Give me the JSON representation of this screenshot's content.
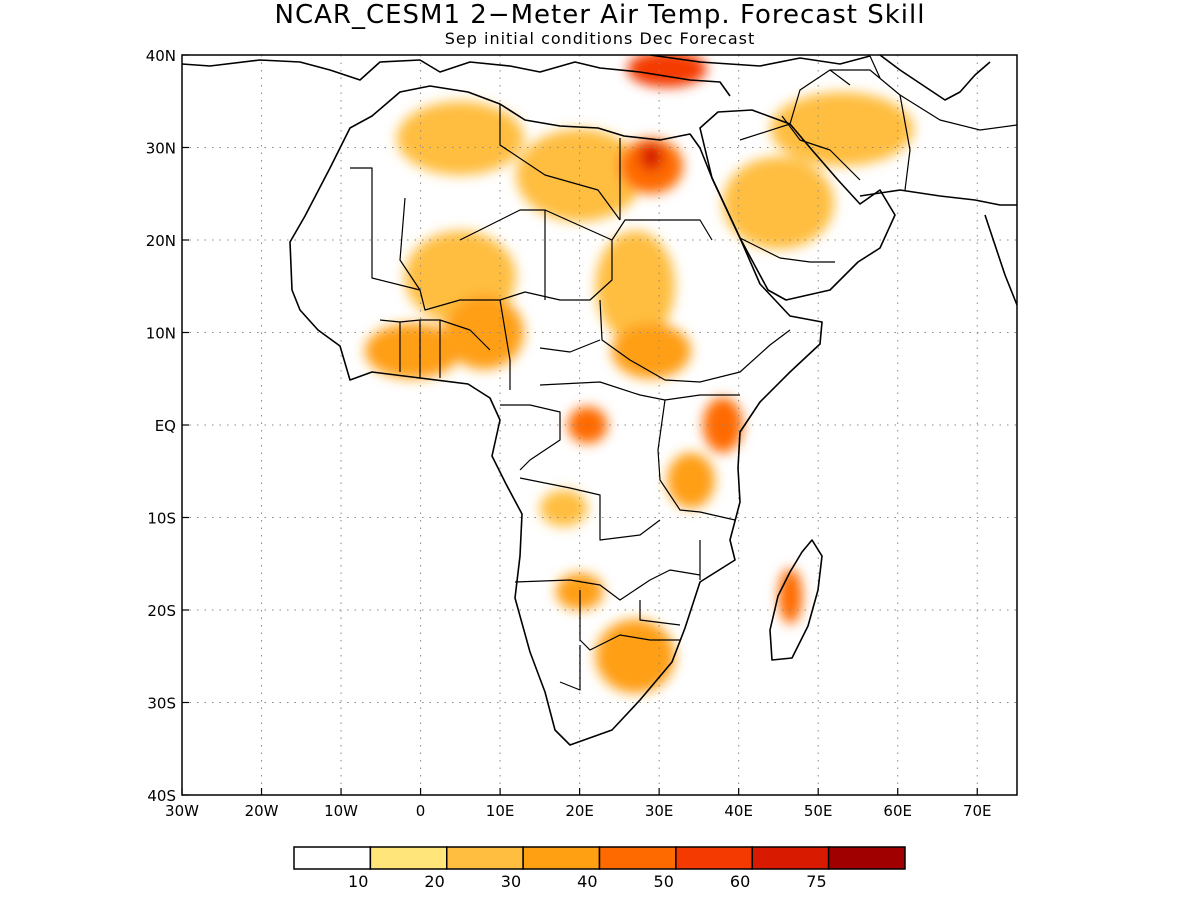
{
  "title": "NCAR_CESM1 2−Meter Air Temp. Forecast Skill",
  "subtitle": "Sep initial conditions  Dec Forecast",
  "map": {
    "lon_range": [
      -30,
      75
    ],
    "lat_range": [
      -40,
      40
    ],
    "grid": "dotted",
    "x_ticks": [
      {
        "v": -30,
        "label": "30W"
      },
      {
        "v": -20,
        "label": "20W"
      },
      {
        "v": -10,
        "label": "10W"
      },
      {
        "v": 0,
        "label": "0"
      },
      {
        "v": 10,
        "label": "10E"
      },
      {
        "v": 20,
        "label": "20E"
      },
      {
        "v": 30,
        "label": "30E"
      },
      {
        "v": 40,
        "label": "40E"
      },
      {
        "v": 50,
        "label": "50E"
      },
      {
        "v": 60,
        "label": "60E"
      },
      {
        "v": 70,
        "label": "70E"
      }
    ],
    "y_ticks": [
      {
        "v": 40,
        "label": "40N"
      },
      {
        "v": 30,
        "label": "30N"
      },
      {
        "v": 20,
        "label": "20N"
      },
      {
        "v": 10,
        "label": "10N"
      },
      {
        "v": 0,
        "label": "EQ"
      },
      {
        "v": -10,
        "label": "10S"
      },
      {
        "v": -20,
        "label": "20S"
      },
      {
        "v": -30,
        "label": "30S"
      },
      {
        "v": -40,
        "label": "40S"
      }
    ]
  },
  "colorbar": {
    "colors": [
      "#ffffff",
      "#ffe57a",
      "#ffbe40",
      "#ff9f12",
      "#ff6a00",
      "#f43a00",
      "#d81a00",
      "#a00000"
    ],
    "labels": [
      "10",
      "20",
      "30",
      "40",
      "50",
      "60",
      "75"
    ]
  },
  "skill_regions": [
    {
      "name": "sahara-north",
      "lon": 5,
      "lat": 31,
      "rx": 8,
      "ry": 4,
      "level": 2
    },
    {
      "name": "libya-east",
      "lon": 20,
      "lat": 27,
      "rx": 8,
      "ry": 5,
      "level": 2
    },
    {
      "name": "egypt",
      "lon": 29,
      "lat": 28,
      "rx": 4,
      "ry": 3,
      "level": 4
    },
    {
      "name": "egypt-core",
      "lon": 29,
      "lat": 29,
      "rx": 1.5,
      "ry": 1.5,
      "level": 6
    },
    {
      "name": "arabia",
      "lon": 45,
      "lat": 24,
      "rx": 7,
      "ry": 5,
      "level": 2
    },
    {
      "name": "iran",
      "lon": 53,
      "lat": 32,
      "rx": 9,
      "ry": 4,
      "level": 2
    },
    {
      "name": "turkey-east",
      "lon": 31,
      "lat": 38.5,
      "rx": 5,
      "ry": 2,
      "level": 5
    },
    {
      "name": "mali-niger",
      "lon": 5,
      "lat": 16,
      "rx": 7,
      "ry": 5,
      "level": 2
    },
    {
      "name": "sudan",
      "lon": 27,
      "lat": 15,
      "rx": 5,
      "ry": 6,
      "level": 2
    },
    {
      "name": "west-africa-coast",
      "lon": -1,
      "lat": 8,
      "rx": 6,
      "ry": 3,
      "level": 3
    },
    {
      "name": "nigeria",
      "lon": 8,
      "lat": 10,
      "rx": 5,
      "ry": 4,
      "level": 3
    },
    {
      "name": "south-sudan",
      "lon": 29,
      "lat": 8,
      "rx": 5,
      "ry": 3,
      "level": 3
    },
    {
      "name": "congo-north",
      "lon": 21,
      "lat": 0,
      "rx": 2.5,
      "ry": 2,
      "level": 4
    },
    {
      "name": "kenya",
      "lon": 38,
      "lat": 0,
      "rx": 2.5,
      "ry": 3,
      "level": 4
    },
    {
      "name": "tanzania",
      "lon": 34,
      "lat": -6,
      "rx": 3,
      "ry": 3,
      "level": 3
    },
    {
      "name": "angola",
      "lon": 18,
      "lat": -9,
      "rx": 3,
      "ry": 2,
      "level": 2
    },
    {
      "name": "namibia-botswana",
      "lon": 20,
      "lat": -18,
      "rx": 3,
      "ry": 2,
      "level": 3
    },
    {
      "name": "south-africa",
      "lon": 27,
      "lat": -25,
      "rx": 5,
      "ry": 4,
      "level": 3
    },
    {
      "name": "madagascar",
      "lon": 46.5,
      "lat": -18.5,
      "rx": 1.5,
      "ry": 3,
      "level": 4
    }
  ]
}
